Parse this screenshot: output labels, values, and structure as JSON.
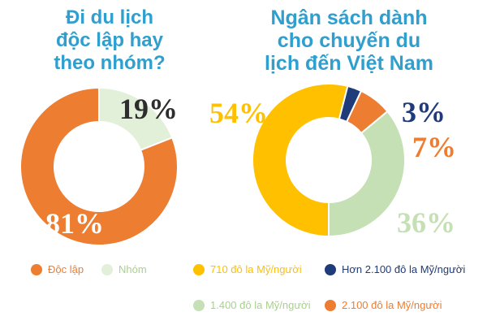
{
  "chart_data": [
    {
      "type": "pie",
      "title_lines": [
        "Đi du lịch",
        "độc lập hay",
        "theo nhóm?"
      ],
      "slices": [
        {
          "name": "Độc lập",
          "value": 81,
          "label": "81%",
          "color": "#ed7d31",
          "text_color": "#ffffff"
        },
        {
          "name": "Nhóm",
          "value": 19,
          "label": "19%",
          "color": "#e2f0d9",
          "text_color": "#2d2d2d"
        }
      ]
    },
    {
      "type": "pie",
      "title_lines": [
        "Ngân sách dành",
        "cho chuyến du",
        "lịch đến Việt Nam"
      ],
      "slices": [
        {
          "name": "710 đô la Mỹ/người",
          "value": 54,
          "label": "54%",
          "color": "#ffc000",
          "text_color": "#ffc000"
        },
        {
          "name": "Hơn 2.100 đô la Mỹ/người",
          "value": 3,
          "label": "3%",
          "color": "#1f3b7a",
          "text_color": "#1f3b7a"
        },
        {
          "name": "2.100 đô la Mỹ/người",
          "value": 7,
          "label": "7%",
          "color": "#ed7d31",
          "text_color": "#ed7d31"
        },
        {
          "name": "1.400 đô la Mỹ/người",
          "value": 36,
          "label": "36%",
          "color": "#c5e0b4",
          "text_color": "#c5e0b4"
        }
      ]
    }
  ],
  "legend_left": [
    {
      "label": "Độc lập",
      "color": "#ed7d31",
      "text_color": "#ed7d31"
    },
    {
      "label": "Nhóm",
      "color": "#e2f0d9",
      "text_color": "#a9d18e"
    }
  ],
  "legend_right": [
    {
      "label": "710 đô la Mỹ/người",
      "color": "#ffc000",
      "text_color": "#ffc000"
    },
    {
      "label": "Hơn 2.100 đô la Mỹ/người",
      "color": "#1f3b7a",
      "text_color": "#1f3b7a"
    },
    {
      "label": "1.400 đô la Mỹ/người",
      "color": "#c5e0b4",
      "text_color": "#a9d18e"
    },
    {
      "label": "2.100 đô la Mỹ/người",
      "color": "#ed7d31",
      "text_color": "#ed7d31"
    }
  ]
}
